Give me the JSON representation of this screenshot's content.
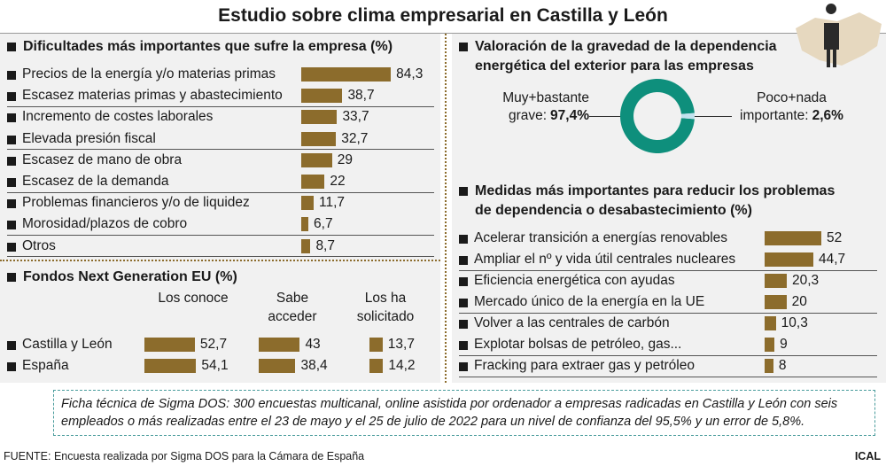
{
  "title": "Estudio sobre clima empresarial en Castilla y León",
  "chart_data": [
    {
      "type": "bar",
      "title": "Dificultades más importantes que sufre la empresa (%)",
      "categories": [
        "Precios de la energía y/o materias primas",
        "Escasez materias primas y abastecimiento",
        "Incremento de costes laborales",
        "Elevada presión fiscal",
        "Escasez de mano de obra",
        "Escasez de la demanda",
        "Problemas financieros y/o de liquidez",
        "Morosidad/plazos de cobro",
        "Otros"
      ],
      "values": [
        84.3,
        38.7,
        33.7,
        32.7,
        29,
        22,
        11.7,
        6.7,
        8.7
      ],
      "value_labels": [
        "84,3",
        "38,7",
        "33,7",
        "32,7",
        "29",
        "22",
        "11,7",
        "6,7",
        "8,7"
      ],
      "color": "#8c6c2c"
    },
    {
      "type": "grouped_bar",
      "title": "Fondos Next Generation EU (%)",
      "categories": [
        "Castilla y León",
        "España"
      ],
      "series": [
        {
          "name": "Los conoce",
          "color": "#8c6c2c",
          "values": [
            52.7,
            54.1
          ],
          "value_labels": [
            "52,7",
            "54,1"
          ]
        },
        {
          "name": "Sabe acceder",
          "color": "#8c6c2c",
          "values": [
            43,
            38.4
          ],
          "value_labels": [
            "43",
            "38,4"
          ]
        },
        {
          "name": "Los ha solicitado",
          "color": "#8c6c2c",
          "values": [
            13.7,
            14.2
          ],
          "value_labels": [
            "13,7",
            "14,2"
          ]
        }
      ]
    },
    {
      "type": "donut",
      "title": "Valoración de la gravedad de la dependencia energética del exterior para las empresas",
      "categories": [
        "Muy+bastante grave:",
        "Poco+nada importante:"
      ],
      "values": [
        97.4,
        2.6
      ],
      "value_labels": [
        "97,4%",
        "2,6%"
      ],
      "colors": [
        "#0e8f7c",
        "#c2e2ee"
      ]
    },
    {
      "type": "bar",
      "title": "Medidas más importantes para reducir los problemas de dependencia o desabastecimiento (%)",
      "categories": [
        "Acelerar transición a energías renovables",
        "Ampliar el nº y vida útil centrales nucleares",
        "Eficiencia energética con ayudas",
        "Mercado único de la energía en la UE",
        "Volver a las centrales de carbón",
        "Explotar bolsas de petróleo, gas...",
        "Fracking para extraer gas y petróleo"
      ],
      "values": [
        52,
        44.7,
        20.3,
        20,
        10.3,
        9,
        8
      ],
      "value_labels": [
        "52",
        "44,7",
        "20,3",
        "20",
        "10,3",
        "9",
        "8"
      ],
      "color": "#8c6c2c"
    }
  ],
  "note": "Ficha técnica de Sigma DOS: 300 encuestas multicanal, online asistida por ordenador a empresas radicadas en Castilla y León con seis empleados o más realizadas entre el 23 de mayo y el 25 de julio de 2022 para un nivel de confianza del 95,5% y un error de 5,8%.",
  "source": "FUENTE: Encuesta realizada por Sigma DOS para la Cámara de España",
  "credit": "ICAL"
}
